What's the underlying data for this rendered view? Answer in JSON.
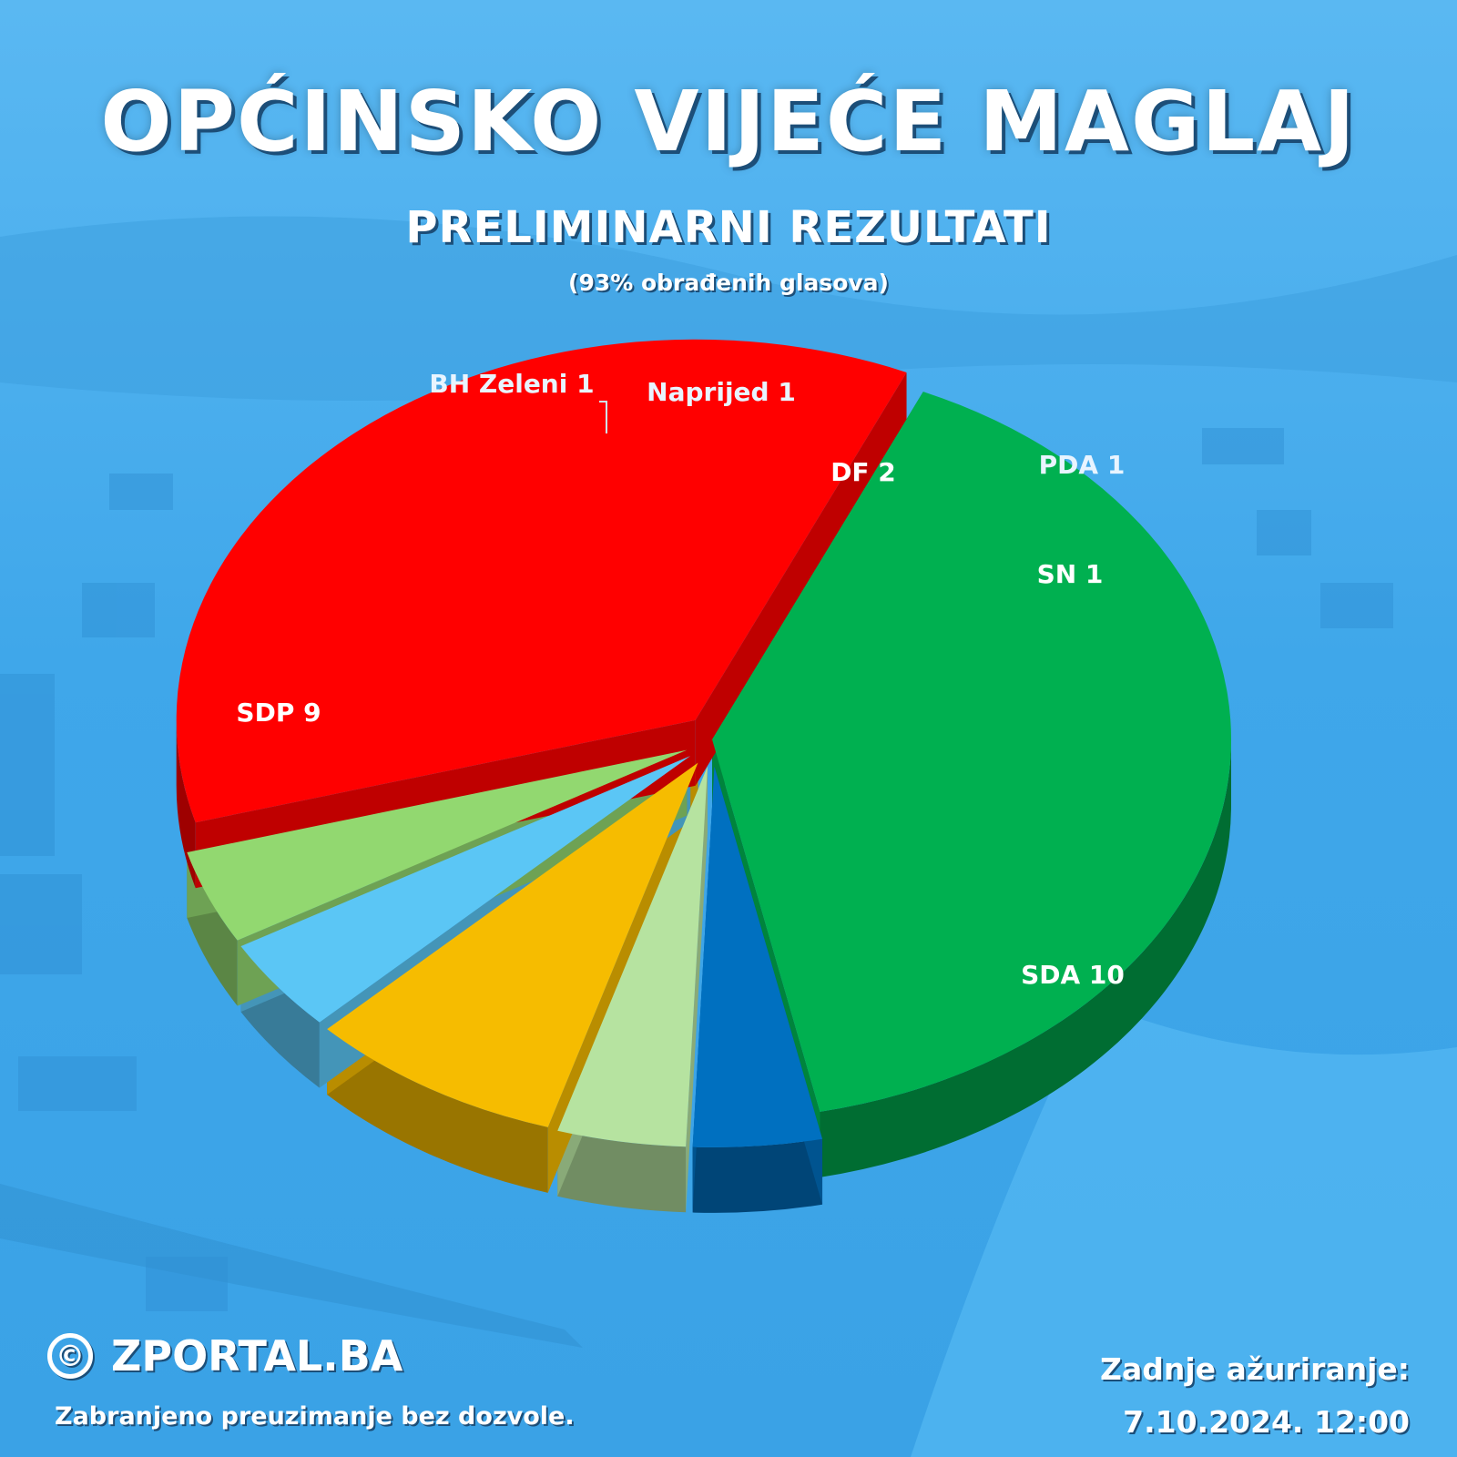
{
  "header": {
    "title": "OPĆINSKO VIJEĆE MAGLAJ",
    "subtitle": "PRELIMINARNI REZULTATI",
    "note": "(93% obrađenih glasova)"
  },
  "footer": {
    "brand": "ZPORTAL.BA",
    "copyright_symbol": "©",
    "disclaimer": "Zabranjeno preuzimanje bez dozvole.",
    "update_label": "Zadnje ažuriranje:",
    "update_value": "7.10.2024. 12:00"
  },
  "colors": {
    "background": "#45aef0",
    "SDA": "#00b050",
    "SN": "#0070c0",
    "PDA": "#b6e3a0",
    "DF": "#f6bc00",
    "Naprijed": "#5bc6f5",
    "BH Zeleni": "#92d870",
    "SDP": "#ff0000"
  },
  "chart_data": {
    "type": "pie",
    "style": "3d-exploded",
    "unit": "seats",
    "slices": [
      {
        "party": "SDA",
        "value": 10,
        "label": "SDA 10"
      },
      {
        "party": "SN",
        "value": 1,
        "label": "SN 1"
      },
      {
        "party": "PDA",
        "value": 1,
        "label": "PDA 1"
      },
      {
        "party": "DF",
        "value": 2,
        "label": "DF 2"
      },
      {
        "party": "Naprijed",
        "value": 1,
        "label": "Naprijed 1"
      },
      {
        "party": "BH Zeleni",
        "value": 1,
        "label": "BH Zeleni 1"
      },
      {
        "party": "SDP",
        "value": 9,
        "label": "SDP 9"
      }
    ],
    "total": 25
  }
}
